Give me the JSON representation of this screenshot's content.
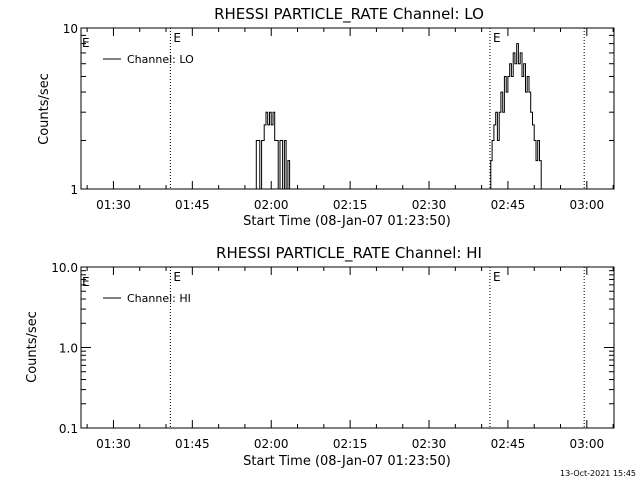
{
  "footer": {
    "timestamp": "13-Oct-2021 15:45"
  },
  "chart_data": [
    {
      "type": "line",
      "title": "RHESSI PARTICLE_RATE Channel: LO",
      "xlabel": "Start Time (08-Jan-07 01:23:50)",
      "ylabel": "Counts/sec",
      "yscale": "log",
      "ylim": [
        1,
        10
      ],
      "y_ticks": [
        "1",
        "10"
      ],
      "xlim": [
        "01:23:50",
        "03:05:10"
      ],
      "x_ticks": [
        "01:30",
        "01:45",
        "02:00",
        "02:15",
        "02:30",
        "02:45",
        "03:00"
      ],
      "legend": {
        "label": "Channel: LO",
        "position": "top-left"
      },
      "event_markers": [
        {
          "time": "01:40:50",
          "label": "E"
        },
        {
          "time": "02:41:35",
          "label": "E"
        },
        {
          "time": "02:59:30",
          "label": ""
        }
      ],
      "series": [
        {
          "name": "Channel: LO",
          "points": [
            [
              "01:57:10",
              1
            ],
            [
              "01:57:10",
              2
            ],
            [
              "01:57:50",
              2
            ],
            [
              "01:57:50",
              1
            ],
            [
              "01:58:10",
              1
            ],
            [
              "01:58:10",
              2
            ],
            [
              "01:58:40",
              2
            ],
            [
              "01:58:40",
              2.5
            ],
            [
              "01:59:00",
              2.5
            ],
            [
              "01:59:00",
              3
            ],
            [
              "01:59:20",
              3
            ],
            [
              "01:59:20",
              2.5
            ],
            [
              "01:59:40",
              2.5
            ],
            [
              "01:59:40",
              3
            ],
            [
              "02:00:00",
              3
            ],
            [
              "02:00:00",
              2.5
            ],
            [
              "02:00:20",
              2.5
            ],
            [
              "02:00:20",
              3
            ],
            [
              "02:00:40",
              3
            ],
            [
              "02:00:40",
              2
            ],
            [
              "02:01:20",
              2
            ],
            [
              "02:01:20",
              1
            ],
            [
              "02:01:40",
              1
            ],
            [
              "02:01:40",
              2
            ],
            [
              "02:02:10",
              2
            ],
            [
              "02:02:10",
              1
            ],
            [
              "02:02:30",
              1
            ],
            [
              "02:02:30",
              2
            ],
            [
              "02:02:50",
              2
            ],
            [
              "02:02:50",
              1
            ],
            [
              "02:03:10",
              1
            ],
            [
              "02:03:10",
              1.5
            ],
            [
              "02:03:30",
              1.5
            ],
            [
              "02:03:30",
              1
            ],
            [
              "02:41:45",
              1
            ],
            [
              "02:41:45",
              1.5
            ],
            [
              "02:42:00",
              1.5
            ],
            [
              "02:42:00",
              2
            ],
            [
              "02:42:20",
              2
            ],
            [
              "02:42:20",
              2.5
            ],
            [
              "02:42:40",
              2.5
            ],
            [
              "02:42:40",
              3
            ],
            [
              "02:43:00",
              3
            ],
            [
              "02:43:00",
              2
            ],
            [
              "02:43:20",
              2
            ],
            [
              "02:43:20",
              3
            ],
            [
              "02:43:40",
              3
            ],
            [
              "02:43:40",
              4
            ],
            [
              "02:44:00",
              4
            ],
            [
              "02:44:00",
              3
            ],
            [
              "02:44:20",
              3
            ],
            [
              "02:44:20",
              5
            ],
            [
              "02:44:40",
              5
            ],
            [
              "02:44:40",
              4
            ],
            [
              "02:45:00",
              4
            ],
            [
              "02:45:00",
              5
            ],
            [
              "02:45:20",
              5
            ],
            [
              "02:45:20",
              6
            ],
            [
              "02:45:40",
              6
            ],
            [
              "02:45:40",
              5
            ],
            [
              "02:46:00",
              5
            ],
            [
              "02:46:00",
              7
            ],
            [
              "02:46:20",
              7
            ],
            [
              "02:46:20",
              6
            ],
            [
              "02:46:40",
              6
            ],
            [
              "02:46:40",
              8
            ],
            [
              "02:47:00",
              8
            ],
            [
              "02:47:00",
              6
            ],
            [
              "02:47:20",
              6
            ],
            [
              "02:47:20",
              7
            ],
            [
              "02:47:40",
              7
            ],
            [
              "02:47:40",
              5
            ],
            [
              "02:48:00",
              5
            ],
            [
              "02:48:00",
              6
            ],
            [
              "02:48:20",
              6
            ],
            [
              "02:48:20",
              4
            ],
            [
              "02:48:40",
              4
            ],
            [
              "02:48:40",
              5
            ],
            [
              "02:49:00",
              5
            ],
            [
              "02:49:00",
              4
            ],
            [
              "02:49:20",
              4
            ],
            [
              "02:49:20",
              3
            ],
            [
              "02:49:40",
              3
            ],
            [
              "02:49:40",
              2.5
            ],
            [
              "02:50:00",
              2.5
            ],
            [
              "02:50:00",
              2
            ],
            [
              "02:50:20",
              2
            ],
            [
              "02:50:20",
              1.5
            ],
            [
              "02:50:40",
              1.5
            ],
            [
              "02:50:40",
              2
            ],
            [
              "02:51:00",
              2
            ],
            [
              "02:51:00",
              1.5
            ],
            [
              "02:51:20",
              1.5
            ],
            [
              "02:51:20",
              1
            ]
          ]
        }
      ]
    },
    {
      "type": "line",
      "title": "RHESSI PARTICLE_RATE Channel: HI",
      "xlabel": "Start Time (08-Jan-07 01:23:50)",
      "ylabel": "Counts/sec",
      "yscale": "log",
      "ylim": [
        0.1,
        10
      ],
      "y_ticks": [
        "0.1",
        "1.0",
        "10.0"
      ],
      "xlim": [
        "01:23:50",
        "03:05:10"
      ],
      "x_ticks": [
        "01:30",
        "01:45",
        "02:00",
        "02:15",
        "02:30",
        "02:45",
        "03:00"
      ],
      "legend": {
        "label": "Channel: HI",
        "position": "top-left"
      },
      "event_markers": [
        {
          "time": "01:40:50",
          "label": "E"
        },
        {
          "time": "02:41:35",
          "label": "E"
        },
        {
          "time": "02:59:30",
          "label": ""
        }
      ],
      "series": [
        {
          "name": "Channel: HI",
          "points": []
        }
      ]
    }
  ]
}
